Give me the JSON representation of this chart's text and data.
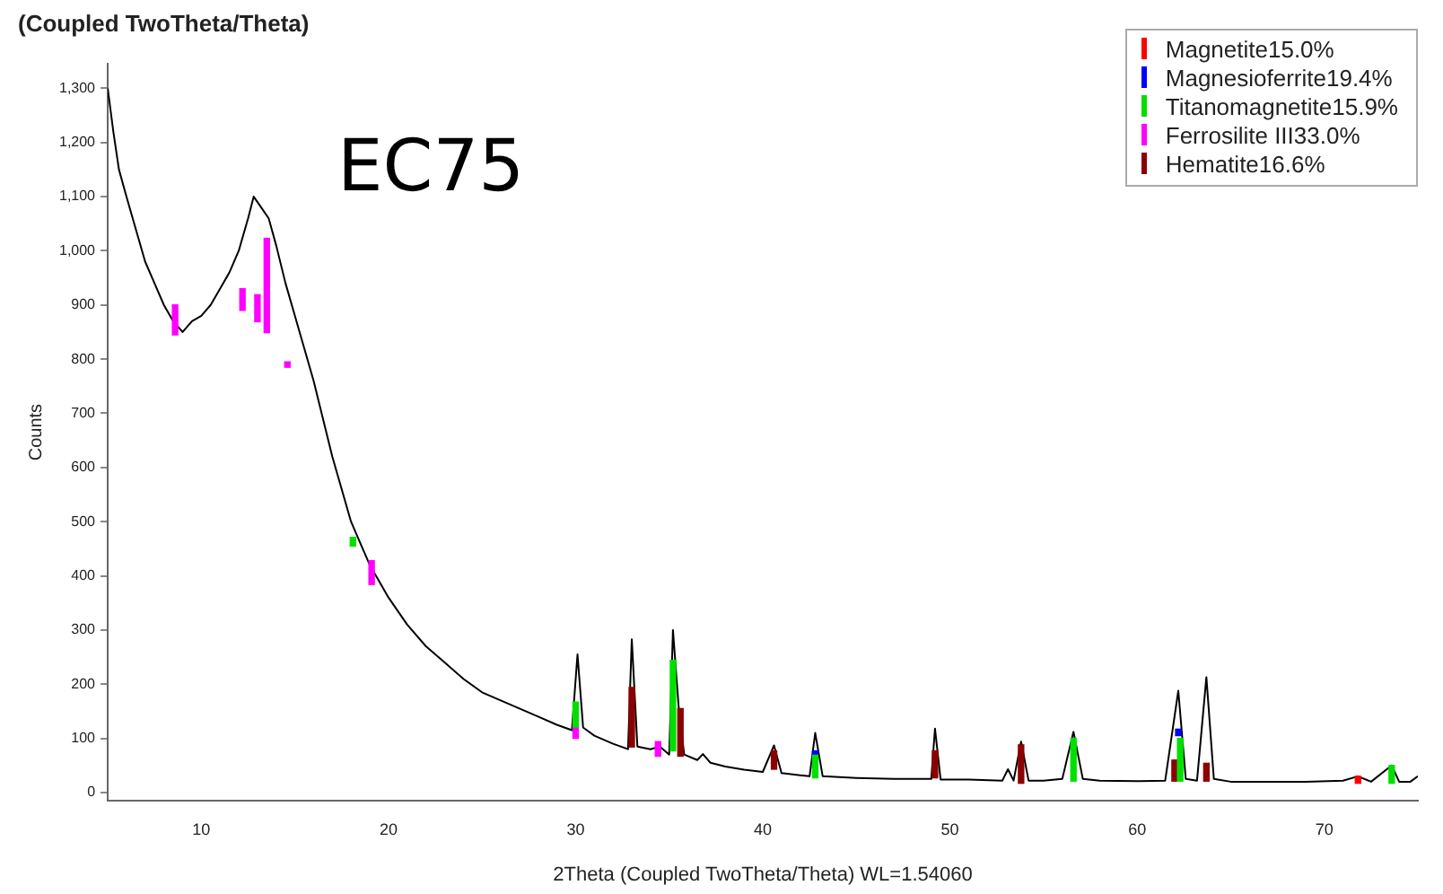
{
  "chart_data": {
    "type": "line",
    "title": "(Coupled TwoTheta/Theta)",
    "xlabel": "2Theta (Coupled TwoTheta/Theta) WL=1.54060",
    "ylabel": "Counts",
    "annotations": [
      "EC75"
    ],
    "xlim": [
      5,
      75
    ],
    "xticks": [
      10,
      20,
      30,
      40,
      50,
      60,
      70
    ],
    "ylim": [
      -15,
      1345
    ],
    "yticks": [
      0,
      100,
      200,
      300,
      400,
      500,
      600,
      700,
      800,
      900,
      {
        "value": 1000,
        "label": "1,000"
      },
      {
        "value": 1100,
        "label": "1,100"
      },
      {
        "value": 1200,
        "label": "1,200"
      },
      {
        "value": 1300,
        "label": "1,300"
      }
    ],
    "grid": false,
    "legend": "top right",
    "marker": "none",
    "series": [
      {
        "color": "#000000",
        "x": [
          5,
          5.3,
          5.6,
          6,
          6.5,
          7,
          7.5,
          8,
          8.5,
          9,
          9.5,
          10,
          10.5,
          11,
          11.5,
          12,
          12.5,
          12.8,
          13.2,
          13.6,
          14,
          14.5,
          15,
          15.5,
          16,
          16.5,
          17,
          17.5,
          18,
          18.5,
          19,
          19.5,
          20,
          21,
          22,
          23,
          24,
          25,
          26,
          27,
          28,
          29,
          29.8,
          30.1,
          30.4,
          31,
          32,
          32.8,
          33,
          33.3,
          34,
          34.5,
          35,
          35.2,
          35.5,
          35.8,
          36.5,
          36.8,
          37.2,
          38,
          39,
          40,
          40.6,
          41,
          42,
          42.5,
          42.8,
          43.2,
          45,
          47,
          49,
          49.2,
          49.5,
          51,
          52.8,
          53.1,
          53.4,
          53.8,
          54.2,
          55,
          56,
          56.6,
          57.1,
          58,
          60,
          61.5,
          62.2,
          62.6,
          63.2,
          63.7,
          64.1,
          65,
          67,
          69,
          71,
          71.8,
          72.5,
          73.6,
          74,
          74.6,
          75
        ],
        "values": [
          1300,
          1220,
          1150,
          1100,
          1040,
          980,
          940,
          900,
          870,
          850,
          870,
          880,
          900,
          930,
          960,
          1000,
          1060,
          1100,
          1080,
          1060,
          1010,
          940,
          880,
          820,
          760,
          690,
          620,
          560,
          500,
          460,
          420,
          390,
          360,
          310,
          270,
          240,
          210,
          185,
          170,
          155,
          140,
          125,
          115,
          255,
          120,
          105,
          90,
          80,
          283,
          85,
          80,
          85,
          70,
          300,
          160,
          70,
          60,
          71,
          55,
          48,
          42,
          38,
          87,
          36,
          32,
          30,
          110,
          30,
          27,
          25,
          25,
          118,
          24,
          24,
          22,
          43,
          22,
          94,
          22,
          22,
          25,
          112,
          25,
          22,
          21,
          22,
          188,
          25,
          22,
          213,
          25,
          20,
          20,
          20,
          22,
          30,
          20,
          50,
          20,
          20,
          30
        ]
      },
      {
        "type": "bar",
        "name": "Magnetite15.0%",
        "color": "#ff0000",
        "x": [
          71.8
        ],
        "base": [
          17
        ],
        "values": [
          13
        ]
      },
      {
        "type": "bar",
        "name": "Magnesioferrite19.4%",
        "color": "#0000ff",
        "x": [
          42.8,
          62.2
        ],
        "base": [
          71,
          105
        ],
        "values": [
          6,
          12
        ]
      },
      {
        "type": "bar",
        "name": "Titanomagnetite15.9%",
        "color": "#00e000",
        "x": [
          18.1,
          30,
          35.2,
          42.8,
          56.6,
          62.3,
          73.6
        ],
        "base": [
          455,
          121,
          77,
          27,
          21,
          21,
          17
        ],
        "values": [
          16,
          46,
          167,
          44,
          79,
          79,
          33
        ]
      },
      {
        "type": "bar",
        "name": "Ferrosilite III33.0%",
        "color": "#ff00ff",
        "x": [
          8.6,
          12.2,
          13,
          13.5,
          14.6,
          19.1,
          30,
          34.4
        ],
        "base": [
          845,
          890,
          869,
          849,
          785,
          384,
          100,
          67
        ],
        "values": [
          55,
          40,
          50,
          174,
          10,
          44,
          21,
          27
        ]
      },
      {
        "type": "bar",
        "name": "Hematite16.6%",
        "color": "#8b0000",
        "x": [
          33,
          35.6,
          40.6,
          49.2,
          53.8,
          62,
          63.7
        ],
        "base": [
          84,
          67,
          43,
          27,
          17,
          21,
          21
        ],
        "values": [
          110,
          88,
          34,
          50,
          71,
          39,
          33
        ]
      }
    ]
  }
}
